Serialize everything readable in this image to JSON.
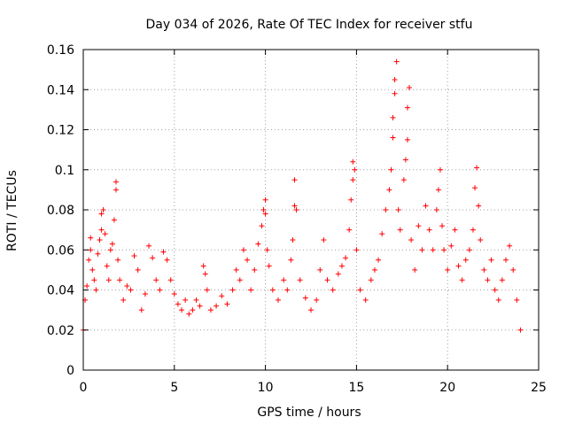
{
  "chart_data": {
    "type": "scatter",
    "title": "Day 034 of 2026, Rate Of TEC Index for receiver stfu",
    "xlabel": "GPS time / hours",
    "ylabel": "ROTI / TECUs",
    "xlim": [
      0,
      25
    ],
    "ylim": [
      0,
      0.16
    ],
    "xticks": [
      0,
      5,
      10,
      15,
      20,
      25
    ],
    "xtick_labels": [
      "0",
      "5",
      "10",
      "15",
      "20",
      "25"
    ],
    "yticks": [
      0,
      0.02,
      0.04,
      0.06,
      0.08,
      0.1,
      0.12,
      0.14,
      0.16
    ],
    "ytick_labels": [
      "0",
      "0.02",
      "0.04",
      "0.06",
      "0.08",
      "0.1",
      "0.12",
      "0.14",
      "0.16"
    ],
    "grid": true,
    "marker": "+",
    "series": [
      {
        "name": "ROTI",
        "color": "#ff0000",
        "points": [
          [
            0.0,
            0.02
          ],
          [
            0.1,
            0.035
          ],
          [
            0.2,
            0.042
          ],
          [
            0.3,
            0.055
          ],
          [
            0.4,
            0.06
          ],
          [
            0.4,
            0.066
          ],
          [
            0.5,
            0.05
          ],
          [
            0.6,
            0.045
          ],
          [
            0.7,
            0.04
          ],
          [
            0.8,
            0.058
          ],
          [
            0.9,
            0.065
          ],
          [
            1.0,
            0.07
          ],
          [
            1.0,
            0.078
          ],
          [
            1.1,
            0.08
          ],
          [
            1.2,
            0.068
          ],
          [
            1.3,
            0.052
          ],
          [
            1.4,
            0.045
          ],
          [
            1.5,
            0.06
          ],
          [
            1.6,
            0.063
          ],
          [
            1.7,
            0.075
          ],
          [
            1.8,
            0.094
          ],
          [
            1.8,
            0.09
          ],
          [
            1.9,
            0.055
          ],
          [
            2.0,
            0.045
          ],
          [
            2.2,
            0.035
          ],
          [
            2.4,
            0.042
          ],
          [
            2.6,
            0.04
          ],
          [
            2.8,
            0.057
          ],
          [
            3.0,
            0.05
          ],
          [
            3.2,
            0.03
          ],
          [
            3.4,
            0.038
          ],
          [
            3.6,
            0.062
          ],
          [
            3.8,
            0.056
          ],
          [
            4.0,
            0.045
          ],
          [
            4.2,
            0.04
          ],
          [
            4.4,
            0.059
          ],
          [
            4.6,
            0.055
          ],
          [
            4.8,
            0.045
          ],
          [
            5.0,
            0.038
          ],
          [
            5.2,
            0.033
          ],
          [
            5.4,
            0.03
          ],
          [
            5.6,
            0.035
          ],
          [
            5.8,
            0.028
          ],
          [
            6.0,
            0.03
          ],
          [
            6.2,
            0.035
          ],
          [
            6.4,
            0.032
          ],
          [
            6.6,
            0.052
          ],
          [
            6.7,
            0.048
          ],
          [
            6.8,
            0.04
          ],
          [
            7.0,
            0.03
          ],
          [
            7.3,
            0.032
          ],
          [
            7.6,
            0.037
          ],
          [
            7.9,
            0.033
          ],
          [
            8.2,
            0.04
          ],
          [
            8.4,
            0.05
          ],
          [
            8.6,
            0.045
          ],
          [
            8.8,
            0.06
          ],
          [
            9.0,
            0.055
          ],
          [
            9.2,
            0.04
          ],
          [
            9.4,
            0.05
          ],
          [
            9.6,
            0.063
          ],
          [
            9.8,
            0.072
          ],
          [
            9.9,
            0.08
          ],
          [
            10.0,
            0.085
          ],
          [
            10.0,
            0.078
          ],
          [
            10.1,
            0.06
          ],
          [
            10.2,
            0.052
          ],
          [
            10.4,
            0.04
          ],
          [
            10.7,
            0.035
          ],
          [
            11.0,
            0.045
          ],
          [
            11.2,
            0.04
          ],
          [
            11.4,
            0.055
          ],
          [
            11.5,
            0.065
          ],
          [
            11.6,
            0.082
          ],
          [
            11.6,
            0.095
          ],
          [
            11.7,
            0.08
          ],
          [
            11.9,
            0.045
          ],
          [
            12.2,
            0.036
          ],
          [
            12.5,
            0.03
          ],
          [
            12.8,
            0.035
          ],
          [
            13.0,
            0.05
          ],
          [
            13.2,
            0.065
          ],
          [
            13.4,
            0.045
          ],
          [
            13.7,
            0.04
          ],
          [
            14.0,
            0.048
          ],
          [
            14.2,
            0.052
          ],
          [
            14.4,
            0.056
          ],
          [
            14.6,
            0.07
          ],
          [
            14.7,
            0.085
          ],
          [
            14.8,
            0.095
          ],
          [
            14.8,
            0.104
          ],
          [
            14.9,
            0.1
          ],
          [
            15.0,
            0.06
          ],
          [
            15.2,
            0.04
          ],
          [
            15.5,
            0.035
          ],
          [
            15.8,
            0.045
          ],
          [
            16.0,
            0.05
          ],
          [
            16.2,
            0.055
          ],
          [
            16.4,
            0.068
          ],
          [
            16.6,
            0.08
          ],
          [
            16.8,
            0.09
          ],
          [
            16.9,
            0.1
          ],
          [
            17.0,
            0.116
          ],
          [
            17.0,
            0.126
          ],
          [
            17.1,
            0.138
          ],
          [
            17.1,
            0.145
          ],
          [
            17.2,
            0.154
          ],
          [
            17.3,
            0.08
          ],
          [
            17.4,
            0.07
          ],
          [
            17.6,
            0.095
          ],
          [
            17.7,
            0.105
          ],
          [
            17.8,
            0.115
          ],
          [
            17.8,
            0.131
          ],
          [
            17.9,
            0.141
          ],
          [
            18.0,
            0.065
          ],
          [
            18.2,
            0.05
          ],
          [
            18.4,
            0.072
          ],
          [
            18.6,
            0.06
          ],
          [
            18.8,
            0.082
          ],
          [
            19.0,
            0.07
          ],
          [
            19.2,
            0.06
          ],
          [
            19.4,
            0.08
          ],
          [
            19.5,
            0.09
          ],
          [
            19.6,
            0.1
          ],
          [
            19.7,
            0.072
          ],
          [
            19.8,
            0.06
          ],
          [
            20.0,
            0.05
          ],
          [
            20.2,
            0.062
          ],
          [
            20.4,
            0.07
          ],
          [
            20.6,
            0.052
          ],
          [
            20.8,
            0.045
          ],
          [
            21.0,
            0.055
          ],
          [
            21.2,
            0.06
          ],
          [
            21.4,
            0.07
          ],
          [
            21.5,
            0.091
          ],
          [
            21.6,
            0.101
          ],
          [
            21.7,
            0.082
          ],
          [
            21.8,
            0.065
          ],
          [
            22.0,
            0.05
          ],
          [
            22.2,
            0.045
          ],
          [
            22.4,
            0.055
          ],
          [
            22.6,
            0.04
          ],
          [
            22.8,
            0.035
          ],
          [
            23.0,
            0.045
          ],
          [
            23.2,
            0.055
          ],
          [
            23.4,
            0.062
          ],
          [
            23.6,
            0.05
          ],
          [
            23.8,
            0.035
          ],
          [
            24.0,
            0.02
          ]
        ]
      }
    ]
  }
}
